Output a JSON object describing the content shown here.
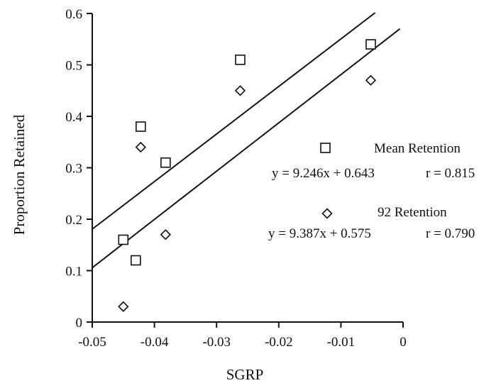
{
  "chart_data": {
    "type": "scatter",
    "title": "",
    "xlabel": "SGRP",
    "ylabel": "Proportion Retained",
    "xlim": [
      -0.05,
      0
    ],
    "ylim": [
      0,
      0.6
    ],
    "x_ticks": [
      -0.05,
      -0.04,
      -0.03,
      -0.02,
      -0.01,
      0
    ],
    "x_tick_labels": [
      "-0.05",
      "-0.04",
      "-0.03",
      "-0.02",
      "-0.01",
      "0"
    ],
    "y_ticks": [
      0,
      0.1,
      0.2,
      0.3,
      0.4,
      0.5,
      0.6
    ],
    "y_tick_labels": [
      "0",
      "0.1",
      "0.2",
      "0.3",
      "0.4",
      "0.5",
      "0.6"
    ],
    "grid": false,
    "legend_position": "right",
    "series": [
      {
        "name": "Mean Retention",
        "marker": "square",
        "equation": "y = 9.246x + 0.643",
        "r_label": "r = 0.815",
        "fit": {
          "slope": 9.246,
          "intercept": 0.643,
          "x_range": [
            -0.05,
            -0.0045
          ]
        },
        "points": [
          {
            "x": -0.045,
            "y": 0.16
          },
          {
            "x": -0.043,
            "y": 0.12
          },
          {
            "x": -0.0422,
            "y": 0.38
          },
          {
            "x": -0.0382,
            "y": 0.31
          },
          {
            "x": -0.0262,
            "y": 0.51
          },
          {
            "x": -0.0052,
            "y": 0.54
          }
        ]
      },
      {
        "name": "92 Retention",
        "marker": "diamond",
        "equation": "y = 9.387x + 0.575",
        "r_label": "r = 0.790",
        "fit": {
          "slope": 9.387,
          "intercept": 0.575,
          "x_range": [
            -0.05,
            -0.0005
          ]
        },
        "points": [
          {
            "x": -0.045,
            "y": 0.03
          },
          {
            "x": -0.0422,
            "y": 0.34
          },
          {
            "x": -0.0382,
            "y": 0.17
          },
          {
            "x": -0.0262,
            "y": 0.45
          },
          {
            "x": -0.0052,
            "y": 0.47
          }
        ]
      }
    ]
  }
}
